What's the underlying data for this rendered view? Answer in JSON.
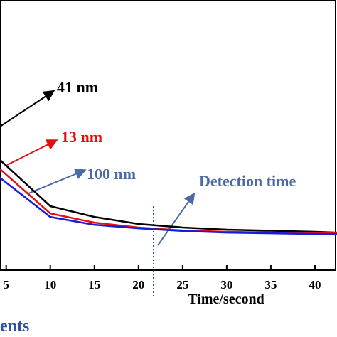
{
  "chart_data": {
    "type": "line",
    "x_label": "Time/second",
    "x": [
      4.3,
      10,
      15,
      20,
      25,
      30,
      40,
      42.5
    ],
    "series": [
      {
        "name": "41 nm",
        "color": "#000000",
        "values": [
          40.8,
          23.7,
          19.7,
          17.1,
          15.8,
          15.0,
          14.2,
          13.9
        ]
      },
      {
        "name": "13 nm",
        "color": "#e01010",
        "values": [
          37.4,
          21.0,
          17.6,
          15.8,
          14.7,
          14.2,
          13.7,
          13.6
        ]
      },
      {
        "name": "100 nm",
        "color": "#1a1adc",
        "values": [
          34.2,
          19.7,
          16.8,
          15.5,
          14.5,
          13.9,
          13.4,
          13.3
        ]
      }
    ],
    "annotations": [
      "Detection time",
      "ents"
    ],
    "xlim": [
      4.3,
      42.5
    ],
    "ylim": [
      0,
      100
    ],
    "xticks": [
      5,
      10,
      15,
      20,
      25,
      30,
      35,
      40
    ]
  }
}
